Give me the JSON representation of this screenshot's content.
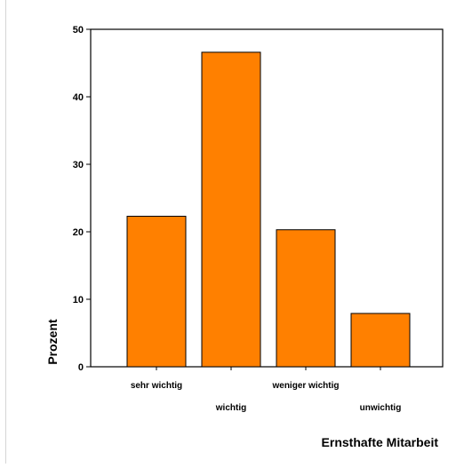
{
  "chart_data": {
    "type": "bar",
    "categories": [
      "sehr wichtig",
      "wichtig",
      "weniger wichtig",
      "unwichtig"
    ],
    "values": [
      22.3,
      46.6,
      20.3,
      7.9
    ],
    "xlabel": "Ernsthafte Mitarbeit",
    "ylabel": "Prozent",
    "ylim": [
      0,
      50
    ],
    "yticks": [
      0,
      10,
      20,
      30,
      40,
      50
    ],
    "grid": false,
    "legend": "none"
  },
  "colors": {
    "bar_fill": "#ff8000",
    "bar_stroke": "#000000",
    "axis": "#000000",
    "background": "#ffffff"
  }
}
